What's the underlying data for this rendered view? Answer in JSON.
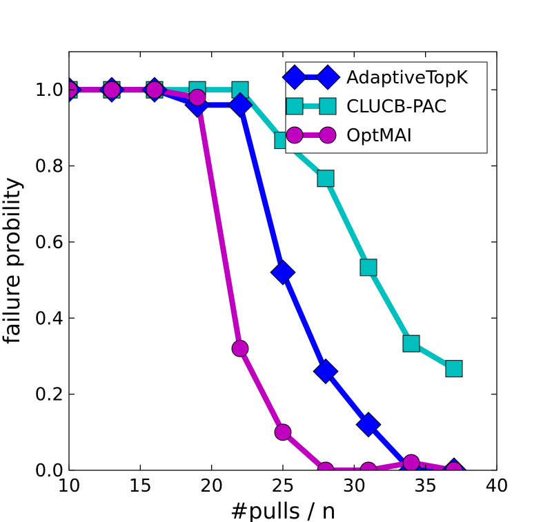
{
  "chart_data": {
    "type": "line",
    "title": "",
    "xlabel": "#pulls / n",
    "ylabel": "failure probility",
    "xlim": [
      10,
      40
    ],
    "ylim": [
      0.0,
      1.1
    ],
    "xticks": [
      10,
      15,
      20,
      25,
      30,
      35,
      40
    ],
    "yticks": [
      0.0,
      0.2,
      0.4,
      0.6,
      0.8,
      1.0
    ],
    "x": [
      10,
      13,
      16,
      19,
      22,
      25,
      28,
      31,
      34,
      37
    ],
    "grid": false,
    "legend_position": "top-right",
    "series": [
      {
        "name": "AdaptiveTopK",
        "color": "#0000ff",
        "marker": "diamond",
        "values": [
          1.0,
          1.0,
          1.0,
          0.96,
          0.96,
          0.52,
          0.26,
          0.12,
          0.0,
          0.0
        ]
      },
      {
        "name": "CLUCB-PAC",
        "color": "#00bfbf",
        "marker": "square",
        "values": [
          1.0,
          1.0,
          1.0,
          1.0,
          1.0,
          0.867,
          0.767,
          0.533,
          0.333,
          0.267
        ]
      },
      {
        "name": "OptMAI",
        "color": "#bf00bf",
        "marker": "circle",
        "values": [
          1.0,
          1.0,
          1.0,
          0.98,
          0.32,
          0.1,
          0.0,
          0.0,
          0.02,
          0.0
        ]
      }
    ]
  }
}
